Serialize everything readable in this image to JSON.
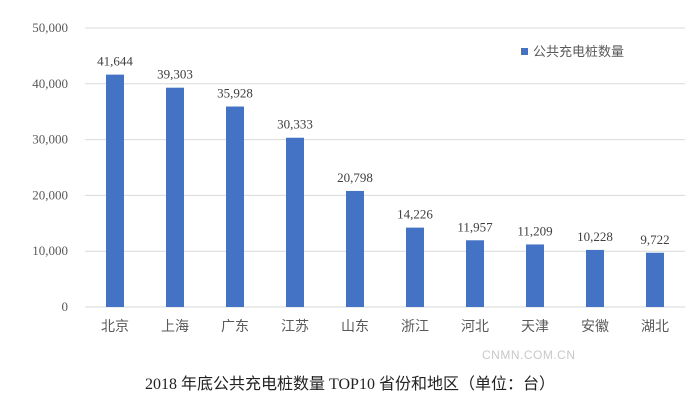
{
  "chart_data": {
    "type": "bar",
    "title": "2018 年底公共充电桩数量 TOP10 省份和地区（单位：台）",
    "categories": [
      "北京",
      "上海",
      "广东",
      "江苏",
      "山东",
      "浙江",
      "河北",
      "天津",
      "安徽",
      "湖北"
    ],
    "series": [
      {
        "name": "公共充电桩数量",
        "values": [
          41644,
          39303,
          35928,
          30333,
          20798,
          14226,
          11957,
          11209,
          10228,
          9722
        ],
        "color": "#4472C4"
      }
    ],
    "data_labels": [
      "41,644",
      "39,303",
      "35,928",
      "30,333",
      "20,798",
      "14,226",
      "11,957",
      "11,209",
      "10,228",
      "9,722"
    ],
    "yticks": [
      "0",
      "10,000",
      "20,000",
      "30,000",
      "40,000",
      "50,000"
    ],
    "ylim": [
      0,
      50000
    ],
    "grid": true,
    "legend": "top-right",
    "xlabel": "",
    "ylabel": ""
  },
  "watermark": "CNMN.COM.CN"
}
